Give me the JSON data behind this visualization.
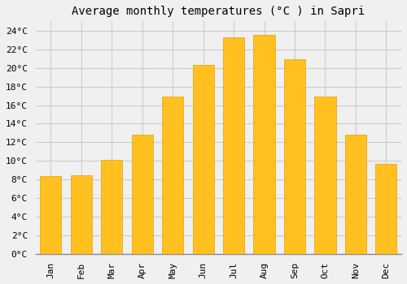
{
  "title": "Average monthly temperatures (°C ) in Sapri",
  "months": [
    "Jan",
    "Feb",
    "Mar",
    "Apr",
    "May",
    "Jun",
    "Jul",
    "Aug",
    "Sep",
    "Oct",
    "Nov",
    "Dec"
  ],
  "temperatures": [
    8.4,
    8.5,
    10.1,
    12.8,
    16.9,
    20.3,
    23.3,
    23.5,
    20.9,
    16.9,
    12.8,
    9.7
  ],
  "bar_color": "#FFC020",
  "bar_edge_color": "#E8A000",
  "background_color": "#F0F0F0",
  "grid_color": "#CCCCCC",
  "ylim": [
    0,
    25
  ],
  "ytick_step": 2,
  "title_fontsize": 10,
  "tick_fontsize": 8,
  "font_family": "monospace",
  "bar_width": 0.7
}
